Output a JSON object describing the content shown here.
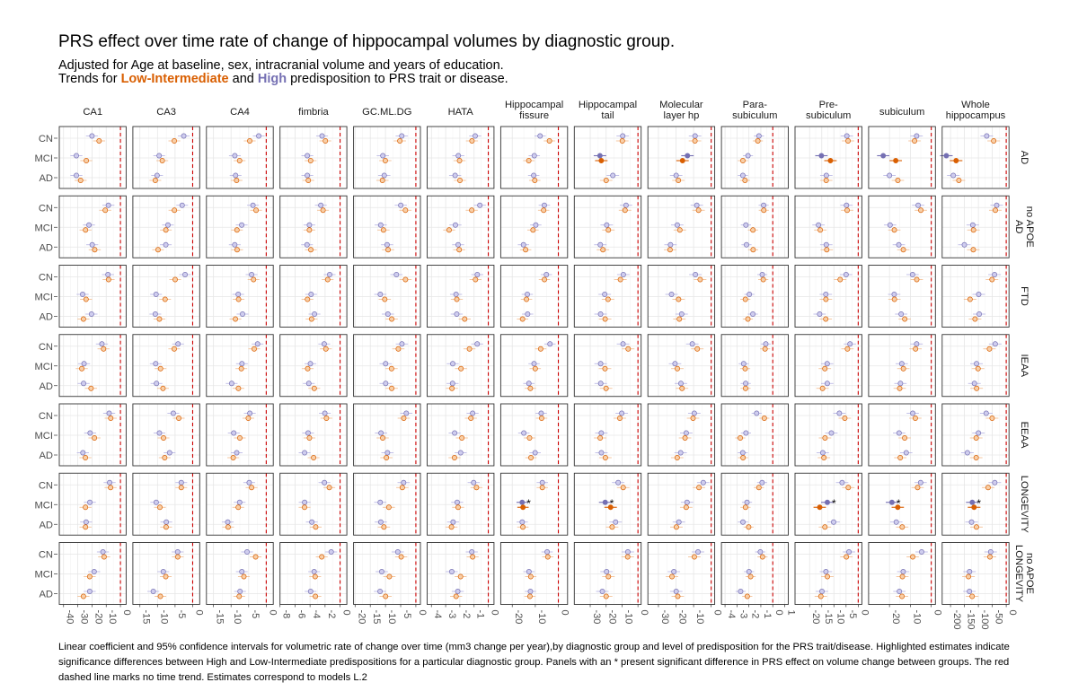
{
  "title": "PRS effect over time rate of change of hippocampal volumes by diagnostic group.",
  "subtitle_line1": "Adjusted for Age at baseline, sex, intracranial volume and years of education.",
  "subtitle_prefix": "Trends for ",
  "subtitle_low": "Low-Intermediate",
  "subtitle_and": " and ",
  "subtitle_high": "High",
  "subtitle_suffix": " predisposition to PRS trait or disease.",
  "caption": "Linear coefficient and 95% confidence intervals for volumetric rate of change over time (mm3 change per year),by diagnostic group and level of predisposition for the PRS trait/disease. Highlighted estimates indicate significance differences between High and Low-Intermediate predispositions for a particular diagnostic group. Panels with an * present significant difference in PRS effect on volume change between groups. The red dashed line marks no time trend. Estimates correspond to models L.2",
  "colors": {
    "low": "#d95f02",
    "high": "#7570b3",
    "low_light": "#f2b98a",
    "high_light": "#b4b1e3",
    "zero_line": "#cc0000"
  },
  "chart_data": {
    "type": "scatter",
    "subtype": "faceted point-range (forest) plot",
    "col_facets": [
      {
        "label": "CA1",
        "ticks": [
          -40,
          -30,
          -20,
          -10,
          0
        ],
        "xlim": [
          -43,
          4
        ]
      },
      {
        "label": "CA3",
        "ticks": [
          -15,
          -10,
          -5,
          0
        ],
        "xlim": [
          -17,
          2
        ]
      },
      {
        "label": "CA4",
        "ticks": [
          -15,
          -10,
          -5,
          0
        ],
        "xlim": [
          -17,
          2
        ]
      },
      {
        "label": "fimbria",
        "ticks": [
          -8,
          -6,
          -4,
          -2,
          0
        ],
        "xlim": [
          -8,
          0.9
        ]
      },
      {
        "label": "GC.ML.DG",
        "ticks": [
          -20,
          -15,
          -10,
          -5,
          0
        ],
        "xlim": [
          -20.5,
          1.5
        ]
      },
      {
        "label": "HATA",
        "ticks": [
          -4,
          -3,
          -2,
          -1,
          0
        ],
        "xlim": [
          -4.3,
          0.4
        ]
      },
      {
        "label": "Hippocampal\nfissure",
        "ticks": [
          -20,
          -10,
          0
        ],
        "xlim": [
          -25,
          4
        ]
      },
      {
        "label": "Hippocampal\ntail",
        "ticks": [
          -30,
          -20,
          -10,
          0
        ],
        "xlim": [
          -40,
          2
        ]
      },
      {
        "label": "Molecular\nlayer hp",
        "ticks": [
          -30,
          -20,
          -10,
          0
        ],
        "xlim": [
          -36,
          2
        ]
      },
      {
        "label": "Para-\nsubiculum",
        "ticks": [
          -4,
          -3,
          -2,
          -1,
          0,
          1
        ],
        "xlim": [
          -4.3,
          1.3
        ]
      },
      {
        "label": "Pre-\nsubiculum",
        "ticks": [
          -20,
          -15,
          -10,
          -5,
          0
        ],
        "xlim": [
          -26,
          1.5
        ]
      },
      {
        "label": "subiculum",
        "ticks": [
          -20,
          -10,
          0
        ],
        "xlim": [
          -30,
          2
        ]
      },
      {
        "label": "Whole\nhippocampus",
        "ticks": [
          -200,
          -150,
          -100,
          -50,
          0
        ],
        "xlim": [
          -230,
          10
        ]
      }
    ],
    "row_facets": [
      "AD",
      "AD\nno APOE",
      "FTD",
      "IEAA",
      "EEAA",
      "LONGEVITY",
      "LONGEVITY\nno APOE"
    ],
    "y_categories": [
      "CN",
      "MCI",
      "AD"
    ],
    "series": [
      {
        "name": "High",
        "color": "#7570b3"
      },
      {
        "name": "Low-Intermediate",
        "color": "#d95f02"
      }
    ],
    "reference_line": {
      "x": 0,
      "style": "dashed",
      "color": "#cc0000"
    },
    "grid": true,
    "legend": "none (colour key given in subtitle)",
    "estimates_AD_row": {
      "CA1": {
        "CN": {
          "High": -20,
          "Low": -15
        },
        "MCI": {
          "High": -31,
          "Low": -24
        },
        "AD": {
          "High": -31,
          "Low": -28
        }
      },
      "subiculum": {
        "CN": {
          "High": -7,
          "Low": -8
        },
        "MCI": {
          "High": -23,
          "Low": -17
        },
        "AD": {
          "High": -20,
          "Low": -16
        }
      },
      "Whole hippocampus": {
        "CN": {
          "High": -70,
          "Low": -45
        },
        "MCI": {
          "High": -215,
          "Low": -180
        },
        "AD": {
          "High": -190,
          "Low": -170
        }
      }
    },
    "significant_panels": [
      {
        "row": "LONGEVITY",
        "col": "Hippocampal\nfissure",
        "group": "MCI"
      },
      {
        "row": "LONGEVITY",
        "col": "Hippocampal\ntail",
        "group": "MCI"
      },
      {
        "row": "LONGEVITY",
        "col": "Pre-\nsubiculum",
        "group": "MCI"
      },
      {
        "row": "LONGEVITY",
        "col": "subiculum",
        "group": "MCI"
      },
      {
        "row": "LONGEVITY",
        "col": "Whole\nhippocampus",
        "group": "MCI"
      }
    ],
    "highlighted_estimates": [
      {
        "row": "AD",
        "col": "Hippocampal\ntail",
        "group": "MCI"
      },
      {
        "row": "AD",
        "col": "Molecular\nlayer hp",
        "group": "MCI"
      },
      {
        "row": "AD",
        "col": "Pre-\nsubiculum",
        "group": "MCI"
      },
      {
        "row": "AD",
        "col": "subiculum",
        "group": "MCI"
      },
      {
        "row": "AD",
        "col": "Whole\nhippocampus",
        "group": "MCI"
      },
      {
        "row": "LONGEVITY",
        "col": "Hippocampal\nfissure",
        "group": "MCI"
      },
      {
        "row": "LONGEVITY",
        "col": "Hippocampal\ntail",
        "group": "MCI"
      },
      {
        "row": "LONGEVITY",
        "col": "Pre-\nsubiculum",
        "group": "MCI"
      },
      {
        "row": "LONGEVITY",
        "col": "subiculum",
        "group": "MCI"
      },
      {
        "row": "LONGEVITY",
        "col": "Whole\nhippocampus",
        "group": "MCI"
      }
    ],
    "significance_marker": "*"
  }
}
